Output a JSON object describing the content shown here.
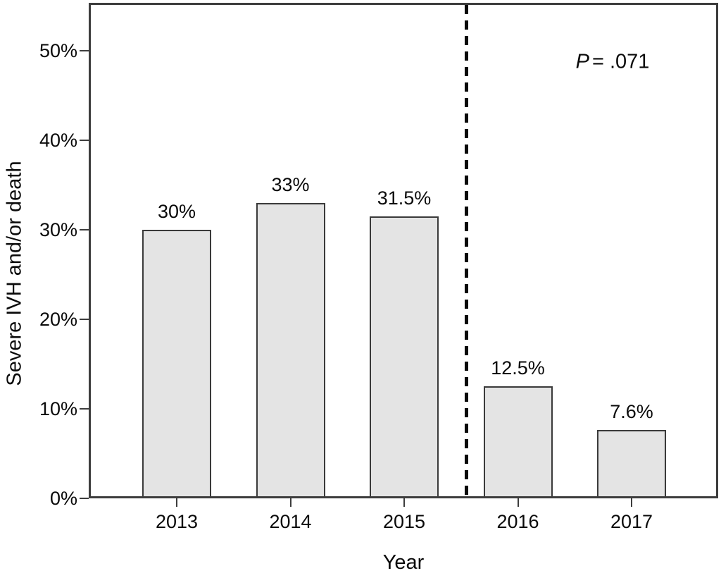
{
  "chart_data": {
    "type": "bar",
    "title": "",
    "categories": [
      "2013",
      "2014",
      "2015",
      "2016",
      "2017"
    ],
    "values": [
      30,
      33,
      31.5,
      12.5,
      7.6
    ],
    "value_labels": [
      "30%",
      "33%",
      "31.5%",
      "12.5%",
      "7.6%"
    ],
    "xlabel": "Year",
    "ylabel": "Severe IVH and/or death",
    "yticks": [
      0,
      10,
      20,
      30,
      40,
      50
    ],
    "ytick_labels": [
      "0%",
      "10%",
      "20%",
      "30%",
      "40%",
      "50%"
    ],
    "ylim": [
      0,
      55
    ],
    "grid": false,
    "legend": false,
    "annotation": {
      "italic": "P",
      "rest": "= .071"
    },
    "divider": {
      "style": "dashed",
      "between": [
        "2015",
        "2016"
      ],
      "color": "#0a0a0a"
    },
    "bar_fill": "#e4e4e4",
    "bar_border": "#3a3a3a",
    "axis_color": "#3d3d3d"
  }
}
